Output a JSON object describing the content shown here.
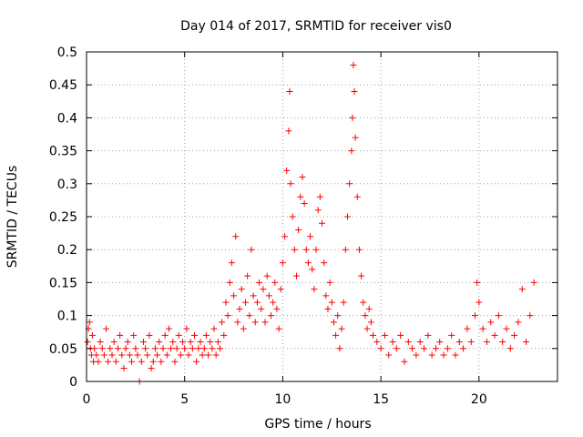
{
  "chart_data": {
    "type": "scatter",
    "title": "Day 014 of 2017, SRMTID for receiver vis0",
    "xlabel": "GPS time / hours",
    "ylabel": "SRMTID / TECUs",
    "xlim": [
      0,
      24
    ],
    "ylim": [
      0,
      0.5
    ],
    "x_ticks": [
      0,
      5,
      10,
      15,
      20
    ],
    "x_tick_labels": [
      "0",
      "5",
      "10",
      "15",
      "20"
    ],
    "y_ticks": [
      0,
      0.05,
      0.1,
      0.15,
      0.2,
      0.25,
      0.3,
      0.35,
      0.4,
      0.45,
      0.5
    ],
    "y_tick_labels": [
      "0",
      "0.05",
      "0.1",
      "0.15",
      "0.2",
      "0.25",
      "0.3",
      "0.35",
      "0.4",
      "0.45",
      "0.5"
    ],
    "grid": true,
    "marker": "+",
    "color": "#ff0000",
    "series": [
      {
        "name": "vis0",
        "points": [
          [
            0.05,
            0.06
          ],
          [
            0.1,
            0.08
          ],
          [
            0.15,
            0.09
          ],
          [
            0.2,
            0.05
          ],
          [
            0.25,
            0.04
          ],
          [
            0.3,
            0.07
          ],
          [
            0.35,
            0.03
          ],
          [
            0.4,
            0.05
          ],
          [
            0.5,
            0.04
          ],
          [
            0.6,
            0.03
          ],
          [
            0.7,
            0.06
          ],
          [
            0.8,
            0.05
          ],
          [
            0.9,
            0.04
          ],
          [
            1.0,
            0.08
          ],
          [
            1.1,
            0.03
          ],
          [
            1.2,
            0.05
          ],
          [
            1.3,
            0.04
          ],
          [
            1.4,
            0.06
          ],
          [
            1.5,
            0.03
          ],
          [
            1.6,
            0.05
          ],
          [
            1.7,
            0.07
          ],
          [
            1.8,
            0.04
          ],
          [
            1.9,
            0.02
          ],
          [
            2.0,
            0.05
          ],
          [
            2.1,
            0.06
          ],
          [
            2.2,
            0.04
          ],
          [
            2.3,
            0.03
          ],
          [
            2.4,
            0.07
          ],
          [
            2.5,
            0.05
          ],
          [
            2.6,
            0.04
          ],
          [
            2.7,
            0.0
          ],
          [
            2.8,
            0.03
          ],
          [
            2.9,
            0.06
          ],
          [
            3.0,
            0.05
          ],
          [
            3.1,
            0.04
          ],
          [
            3.2,
            0.07
          ],
          [
            3.3,
            0.02
          ],
          [
            3.4,
            0.03
          ],
          [
            3.5,
            0.05
          ],
          [
            3.6,
            0.04
          ],
          [
            3.7,
            0.06
          ],
          [
            3.8,
            0.03
          ],
          [
            3.9,
            0.05
          ],
          [
            4.0,
            0.07
          ],
          [
            4.1,
            0.04
          ],
          [
            4.2,
            0.08
          ],
          [
            4.3,
            0.05
          ],
          [
            4.4,
            0.06
          ],
          [
            4.5,
            0.03
          ],
          [
            4.6,
            0.05
          ],
          [
            4.7,
            0.07
          ],
          [
            4.8,
            0.04
          ],
          [
            4.9,
            0.06
          ],
          [
            5.0,
            0.05
          ],
          [
            5.1,
            0.08
          ],
          [
            5.2,
            0.04
          ],
          [
            5.3,
            0.06
          ],
          [
            5.4,
            0.05
          ],
          [
            5.5,
            0.07
          ],
          [
            5.6,
            0.03
          ],
          [
            5.7,
            0.05
          ],
          [
            5.8,
            0.06
          ],
          [
            5.9,
            0.04
          ],
          [
            6.0,
            0.05
          ],
          [
            6.1,
            0.07
          ],
          [
            6.2,
            0.04
          ],
          [
            6.3,
            0.06
          ],
          [
            6.4,
            0.05
          ],
          [
            6.5,
            0.08
          ],
          [
            6.6,
            0.04
          ],
          [
            6.7,
            0.06
          ],
          [
            6.8,
            0.05
          ],
          [
            6.9,
            0.09
          ],
          [
            7.0,
            0.07
          ],
          [
            7.1,
            0.12
          ],
          [
            7.2,
            0.1
          ],
          [
            7.3,
            0.15
          ],
          [
            7.4,
            0.18
          ],
          [
            7.5,
            0.13
          ],
          [
            7.6,
            0.22
          ],
          [
            7.7,
            0.09
          ],
          [
            7.8,
            0.11
          ],
          [
            7.9,
            0.14
          ],
          [
            8.0,
            0.08
          ],
          [
            8.1,
            0.12
          ],
          [
            8.2,
            0.16
          ],
          [
            8.3,
            0.1
          ],
          [
            8.4,
            0.2
          ],
          [
            8.5,
            0.13
          ],
          [
            8.6,
            0.09
          ],
          [
            8.7,
            0.12
          ],
          [
            8.8,
            0.15
          ],
          [
            8.9,
            0.11
          ],
          [
            9.0,
            0.14
          ],
          [
            9.1,
            0.09
          ],
          [
            9.2,
            0.16
          ],
          [
            9.3,
            0.13
          ],
          [
            9.4,
            0.1
          ],
          [
            9.5,
            0.12
          ],
          [
            9.6,
            0.15
          ],
          [
            9.7,
            0.11
          ],
          [
            9.8,
            0.08
          ],
          [
            9.9,
            0.14
          ],
          [
            10.0,
            0.18
          ],
          [
            10.1,
            0.22
          ],
          [
            10.2,
            0.32
          ],
          [
            10.3,
            0.38
          ],
          [
            10.35,
            0.44
          ],
          [
            10.4,
            0.3
          ],
          [
            10.5,
            0.25
          ],
          [
            10.6,
            0.2
          ],
          [
            10.7,
            0.16
          ],
          [
            10.8,
            0.23
          ],
          [
            10.9,
            0.28
          ],
          [
            11.0,
            0.31
          ],
          [
            11.1,
            0.27
          ],
          [
            11.2,
            0.2
          ],
          [
            11.3,
            0.18
          ],
          [
            11.4,
            0.22
          ],
          [
            11.5,
            0.17
          ],
          [
            11.6,
            0.14
          ],
          [
            11.7,
            0.2
          ],
          [
            11.8,
            0.26
          ],
          [
            11.9,
            0.28
          ],
          [
            12.0,
            0.24
          ],
          [
            12.1,
            0.18
          ],
          [
            12.2,
            0.13
          ],
          [
            12.3,
            0.11
          ],
          [
            12.4,
            0.15
          ],
          [
            12.5,
            0.12
          ],
          [
            12.6,
            0.09
          ],
          [
            12.7,
            0.07
          ],
          [
            12.8,
            0.1
          ],
          [
            12.9,
            0.05
          ],
          [
            13.0,
            0.08
          ],
          [
            13.1,
            0.12
          ],
          [
            13.2,
            0.2
          ],
          [
            13.3,
            0.25
          ],
          [
            13.4,
            0.3
          ],
          [
            13.5,
            0.35
          ],
          [
            13.55,
            0.4
          ],
          [
            13.6,
            0.48
          ],
          [
            13.65,
            0.44
          ],
          [
            13.7,
            0.37
          ],
          [
            13.8,
            0.28
          ],
          [
            13.9,
            0.2
          ],
          [
            14.0,
            0.16
          ],
          [
            14.1,
            0.12
          ],
          [
            14.2,
            0.1
          ],
          [
            14.3,
            0.08
          ],
          [
            14.4,
            0.11
          ],
          [
            14.5,
            0.09
          ],
          [
            14.6,
            0.07
          ],
          [
            14.8,
            0.06
          ],
          [
            15.0,
            0.05
          ],
          [
            15.2,
            0.07
          ],
          [
            15.4,
            0.04
          ],
          [
            15.6,
            0.06
          ],
          [
            15.8,
            0.05
          ],
          [
            16.0,
            0.07
          ],
          [
            16.2,
            0.03
          ],
          [
            16.4,
            0.06
          ],
          [
            16.6,
            0.05
          ],
          [
            16.8,
            0.04
          ],
          [
            17.0,
            0.06
          ],
          [
            17.2,
            0.05
          ],
          [
            17.4,
            0.07
          ],
          [
            17.6,
            0.04
          ],
          [
            17.8,
            0.05
          ],
          [
            18.0,
            0.06
          ],
          [
            18.2,
            0.04
          ],
          [
            18.4,
            0.05
          ],
          [
            18.6,
            0.07
          ],
          [
            18.8,
            0.04
          ],
          [
            19.0,
            0.06
          ],
          [
            19.2,
            0.05
          ],
          [
            19.4,
            0.08
          ],
          [
            19.6,
            0.06
          ],
          [
            19.8,
            0.1
          ],
          [
            19.9,
            0.15
          ],
          [
            20.0,
            0.12
          ],
          [
            20.2,
            0.08
          ],
          [
            20.4,
            0.06
          ],
          [
            20.6,
            0.09
          ],
          [
            20.8,
            0.07
          ],
          [
            21.0,
            0.1
          ],
          [
            21.2,
            0.06
          ],
          [
            21.4,
            0.08
          ],
          [
            21.6,
            0.05
          ],
          [
            21.8,
            0.07
          ],
          [
            22.0,
            0.09
          ],
          [
            22.2,
            0.14
          ],
          [
            22.4,
            0.06
          ],
          [
            22.6,
            0.1
          ],
          [
            22.8,
            0.15
          ]
        ]
      }
    ]
  }
}
